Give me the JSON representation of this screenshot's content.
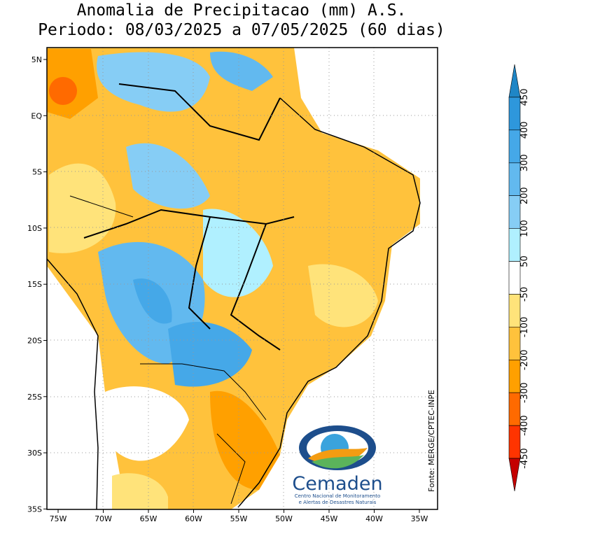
{
  "title": [
    "Anomalia de Precipitacao (mm) A.S.",
    "Periodo: 08/03/2025 a 07/05/2025 (60 dias)"
  ],
  "map": {
    "lat_labels": [
      "5N",
      "EQ",
      "5S",
      "10S",
      "15S",
      "20S",
      "25S",
      "30S",
      "35S"
    ],
    "lon_labels": [
      "75W",
      "70W",
      "65W",
      "60W",
      "55W",
      "50W",
      "45W",
      "40W",
      "35W"
    ]
  },
  "colorbar": {
    "levels": [
      450,
      400,
      300,
      200,
      100,
      50,
      -50,
      -100,
      -200,
      -300,
      -400,
      -450
    ],
    "colors": [
      "#1f86c6",
      "#2e97dc",
      "#45a8e8",
      "#62b9ef",
      "#86cdf5",
      "#b0f0ff",
      "#ffffff",
      "#ffe37a",
      "#ffc23c",
      "#ffa000",
      "#ff6a00",
      "#ff3400",
      "#c40000"
    ]
  },
  "source": "Fonte: MERGE/CPTEC-INPE",
  "logo": {
    "name": "Cemaden",
    "subtitle": [
      "Centro Nacional de Monitoramento",
      "e Alertas de Desastres Naturais"
    ]
  }
}
